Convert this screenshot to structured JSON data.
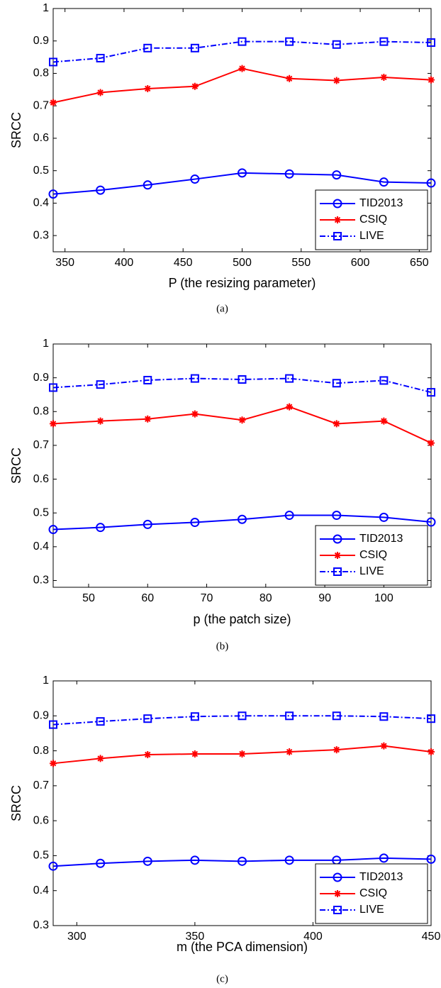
{
  "chart_data": [
    {
      "type": "line",
      "caption": "(a)",
      "xlabel": "P (the resizing parameter)",
      "ylabel": "SRCC",
      "x": [
        340,
        380,
        420,
        460,
        500,
        540,
        580,
        620,
        660
      ],
      "xlim": [
        340,
        660
      ],
      "xticks": [
        350,
        400,
        450,
        500,
        550,
        600,
        650
      ],
      "ylim": [
        0.25,
        1
      ],
      "yticks": [
        0.3,
        0.4,
        0.5,
        0.6,
        0.7,
        0.8,
        0.9,
        1
      ],
      "legend": "lower right",
      "series": [
        {
          "name": "TID2013",
          "color": "#0000ff",
          "marker": "circle",
          "dash": "solid",
          "values": [
            0.428,
            0.44,
            0.456,
            0.474,
            0.493,
            0.49,
            0.487,
            0.465,
            0.462
          ]
        },
        {
          "name": "CSIQ",
          "color": "#ff0000",
          "marker": "star",
          "dash": "solid",
          "values": [
            0.71,
            0.741,
            0.753,
            0.76,
            0.815,
            0.784,
            0.778,
            0.788,
            0.78
          ]
        },
        {
          "name": "LIVE",
          "color": "#0000ff",
          "marker": "square",
          "dash": "dashdot",
          "values": [
            0.835,
            0.847,
            0.878,
            0.878,
            0.898,
            0.898,
            0.889,
            0.898,
            0.895
          ]
        }
      ]
    },
    {
      "type": "line",
      "caption": "(b)",
      "xlabel": "p (the patch size)",
      "ylabel": "SRCC",
      "x": [
        44,
        52,
        60,
        68,
        76,
        84,
        92,
        100,
        108
      ],
      "xlim": [
        44,
        108
      ],
      "xticks": [
        50,
        60,
        70,
        80,
        90,
        100
      ],
      "ylim": [
        0.28,
        1
      ],
      "yticks": [
        0.3,
        0.4,
        0.5,
        0.6,
        0.7,
        0.8,
        0.9,
        1
      ],
      "legend": "lower right",
      "series": [
        {
          "name": "TID2013",
          "color": "#0000ff",
          "marker": "circle",
          "dash": "solid",
          "values": [
            0.451,
            0.457,
            0.466,
            0.472,
            0.481,
            0.493,
            0.493,
            0.487,
            0.473
          ]
        },
        {
          "name": "CSIQ",
          "color": "#ff0000",
          "marker": "star",
          "dash": "solid",
          "values": [
            0.764,
            0.772,
            0.778,
            0.793,
            0.775,
            0.814,
            0.764,
            0.772,
            0.707
          ]
        },
        {
          "name": "LIVE",
          "color": "#0000ff",
          "marker": "square",
          "dash": "dashdot",
          "values": [
            0.871,
            0.88,
            0.893,
            0.898,
            0.895,
            0.898,
            0.884,
            0.892,
            0.857
          ]
        }
      ]
    },
    {
      "type": "line",
      "caption": "(c)",
      "xlabel": "m (the PCA dimension)",
      "ylabel": "SRCC",
      "x": [
        290,
        310,
        330,
        350,
        370,
        390,
        410,
        430,
        450
      ],
      "xlim": [
        290,
        450
      ],
      "xticks": [
        300,
        350,
        400,
        450
      ],
      "ylim": [
        0.3,
        1
      ],
      "yticks": [
        0.3,
        0.4,
        0.5,
        0.6,
        0.7,
        0.8,
        0.9,
        1
      ],
      "legend": "lower right",
      "series": [
        {
          "name": "TID2013",
          "color": "#0000ff",
          "marker": "circle",
          "dash": "solid",
          "values": [
            0.47,
            0.478,
            0.484,
            0.487,
            0.484,
            0.487,
            0.487,
            0.493,
            0.49
          ]
        },
        {
          "name": "CSIQ",
          "color": "#ff0000",
          "marker": "star",
          "dash": "solid",
          "values": [
            0.764,
            0.778,
            0.789,
            0.791,
            0.791,
            0.797,
            0.803,
            0.814,
            0.797
          ]
        },
        {
          "name": "LIVE",
          "color": "#0000ff",
          "marker": "square",
          "dash": "dashdot",
          "values": [
            0.875,
            0.884,
            0.892,
            0.898,
            0.9,
            0.9,
            0.9,
            0.898,
            0.892
          ]
        }
      ]
    }
  ]
}
